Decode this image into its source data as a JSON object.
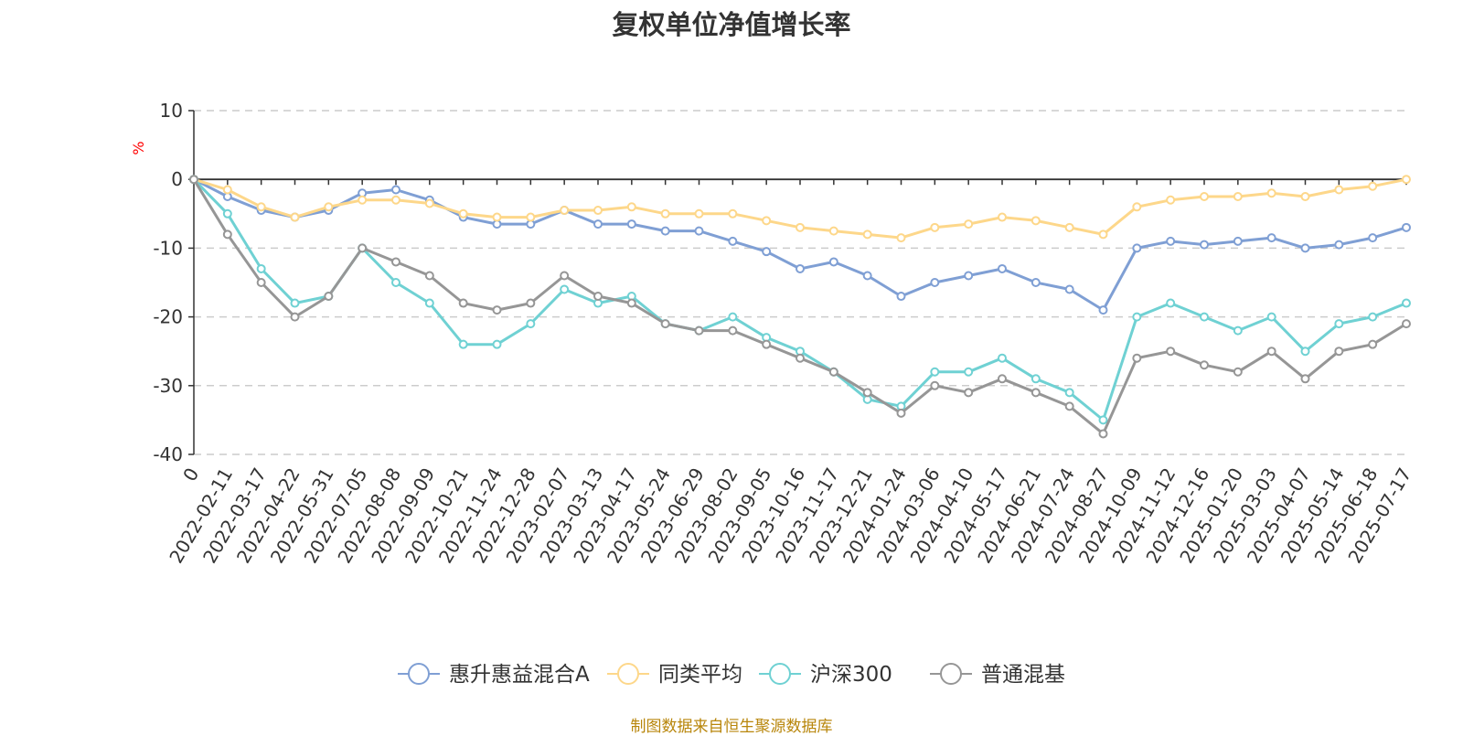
{
  "source_note": "制图数据来自恒生聚源数据库",
  "chart_data": {
    "type": "line",
    "title": "复权单位净值增长率",
    "ylabel": "%",
    "ylabel_color": "#ff0000",
    "ylim": [
      -40,
      10
    ],
    "yticks": [
      10,
      0,
      -10,
      -20,
      -30,
      -40
    ],
    "grid": true,
    "legend_position": "bottom",
    "x": [
      "0",
      "2022-02-11",
      "2022-03-17",
      "2022-04-22",
      "2022-05-31",
      "2022-07-05",
      "2022-08-08",
      "2022-09-09",
      "2022-10-21",
      "2022-11-24",
      "2022-12-28",
      "2023-02-07",
      "2023-03-13",
      "2023-04-17",
      "2023-05-24",
      "2023-06-29",
      "2023-08-02",
      "2023-09-05",
      "2023-10-16",
      "2023-11-17",
      "2023-12-21",
      "2024-01-24",
      "2024-03-06",
      "2024-04-10",
      "2024-05-17",
      "2024-06-21",
      "2024-07-24",
      "2024-08-27",
      "2024-10-09",
      "2024-11-12",
      "2024-12-16",
      "2025-01-20",
      "2025-03-03",
      "2025-04-07",
      "2025-05-14",
      "2025-06-18",
      "2025-07-17"
    ],
    "series": [
      {
        "name": "惠升惠益混合A",
        "color": "#7f9fd4",
        "values": [
          0,
          -2.5,
          -4.5,
          -5.5,
          -4.5,
          -2,
          -1.5,
          -3,
          -5.5,
          -6.5,
          -6.5,
          -4.5,
          -6.5,
          -6.5,
          -7.5,
          -7.5,
          -9,
          -10.5,
          -13,
          -12,
          -14,
          -17,
          -15,
          -14,
          -13,
          -15,
          -16,
          -19,
          -10,
          -9,
          -9.5,
          -9,
          -8.5,
          -10,
          -9.5,
          -8.5,
          -7
        ]
      },
      {
        "name": "同类平均",
        "color": "#fdd78a",
        "values": [
          0,
          -1.5,
          -4,
          -5.5,
          -4,
          -3,
          -3,
          -3.5,
          -5,
          -5.5,
          -5.5,
          -4.5,
          -4.5,
          -4,
          -5,
          -5,
          -5,
          -6,
          -7,
          -7.5,
          -8,
          -8.5,
          -7,
          -6.5,
          -5.5,
          -6,
          -7,
          -8,
          -4,
          -3,
          -2.5,
          -2.5,
          -2,
          -2.5,
          -1.5,
          -1,
          0
        ]
      },
      {
        "name": "沪深300",
        "color": "#6fd1d3",
        "values": [
          0,
          -5,
          -13,
          -18,
          -17,
          -10,
          -15,
          -18,
          -24,
          -24,
          -21,
          -16,
          -18,
          -17,
          -21,
          -22,
          -20,
          -23,
          -25,
          -28,
          -32,
          -33,
          -28,
          -28,
          -26,
          -29,
          -31,
          -35,
          -20,
          -18,
          -20,
          -22,
          -20,
          -25,
          -21,
          -20,
          -18
        ]
      },
      {
        "name": "普通混基",
        "color": "#969696",
        "values": [
          0,
          -8,
          -15,
          -20,
          -17,
          -10,
          -12,
          -14,
          -18,
          -19,
          -18,
          -14,
          -17,
          -18,
          -21,
          -22,
          -22,
          -24,
          -26,
          -28,
          -31,
          -34,
          -30,
          -31,
          -29,
          -31,
          -33,
          -37,
          -26,
          -25,
          -27,
          -28,
          -25,
          -29,
          -25,
          -24,
          -21
        ]
      }
    ]
  }
}
